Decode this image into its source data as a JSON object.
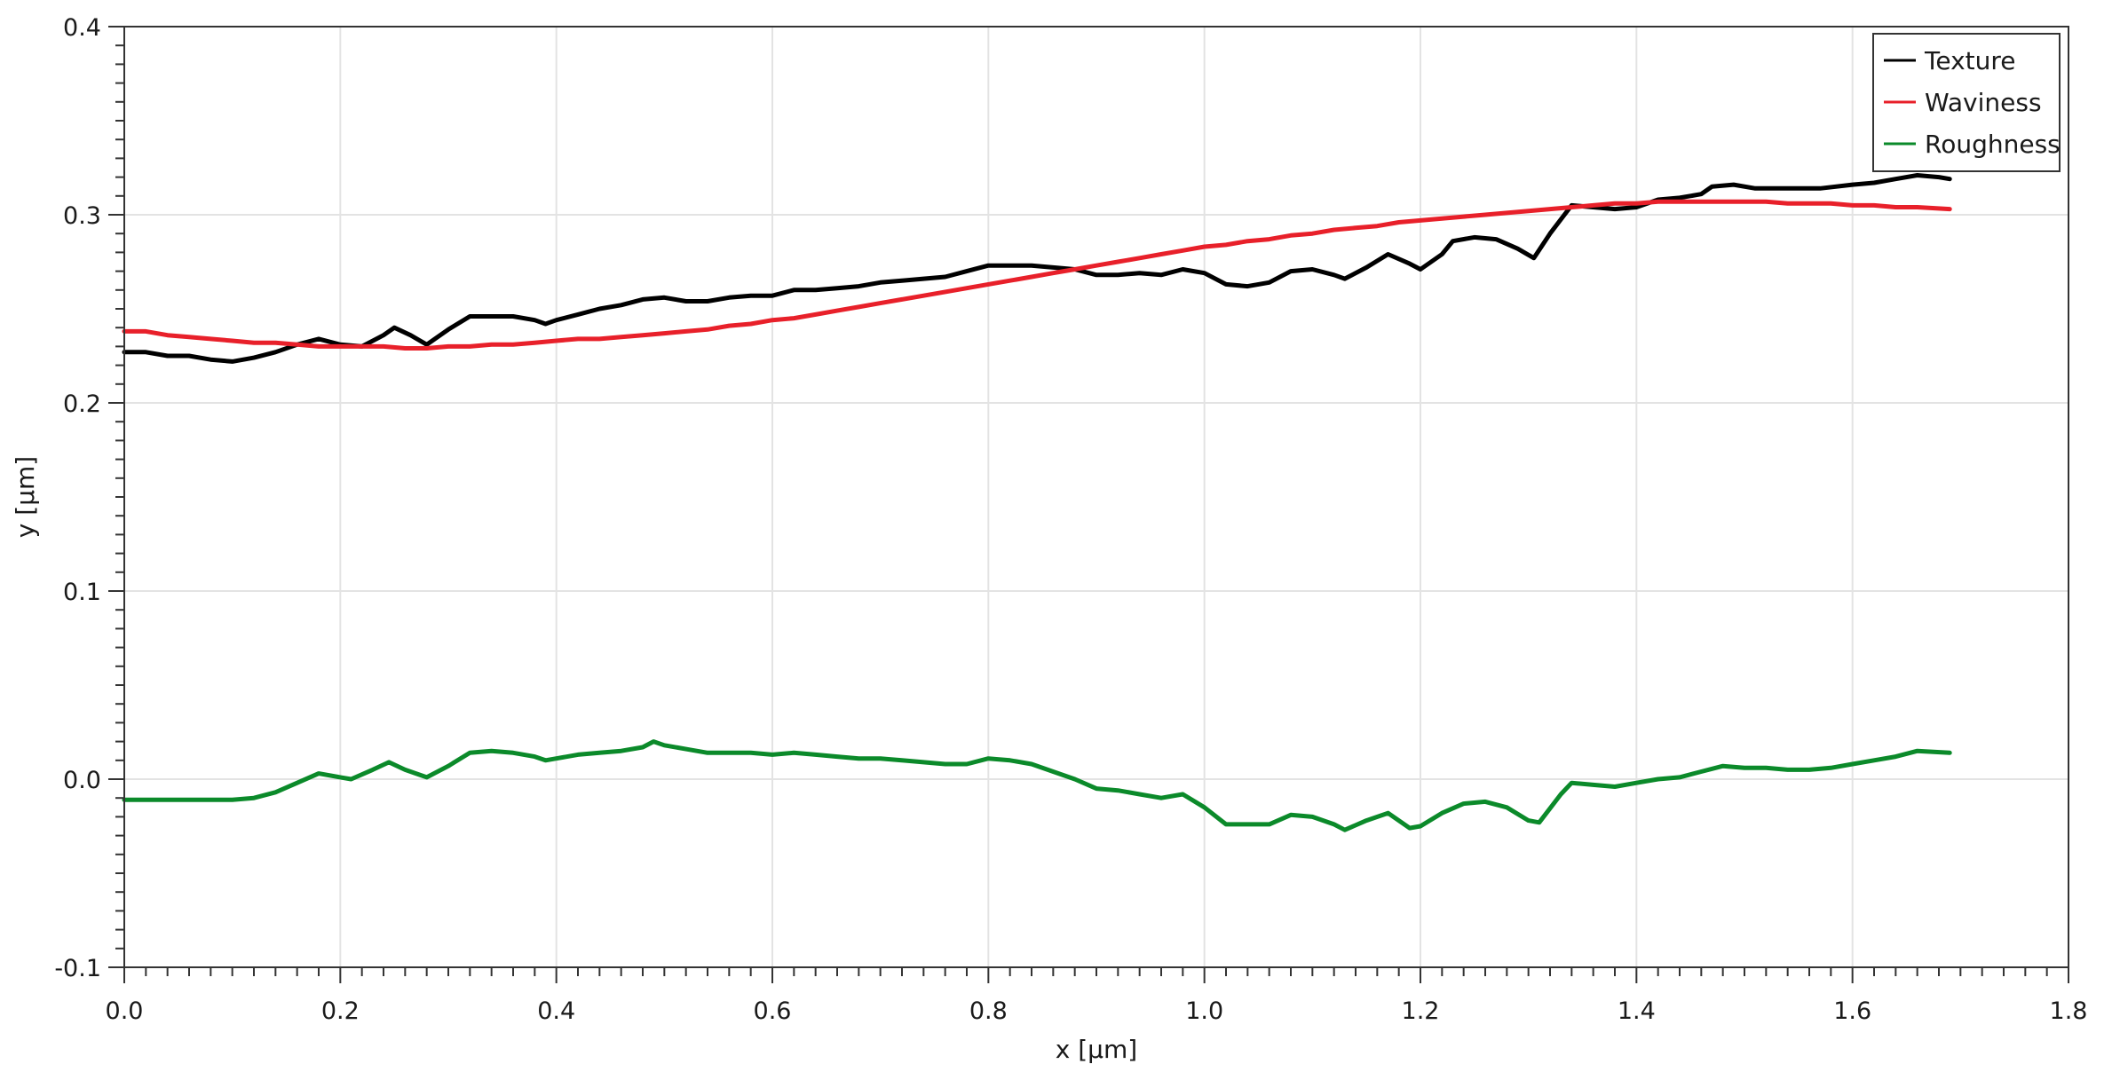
{
  "chart_data": {
    "type": "line",
    "title": "",
    "xlabel": "x [µm]",
    "ylabel": "y [µm]",
    "xlim": [
      0,
      1.8
    ],
    "ylim": [
      -0.1,
      0.4
    ],
    "x_ticks": [
      "0.0",
      "0.2",
      "0.4",
      "0.6",
      "0.8",
      "1.0",
      "1.2",
      "1.4",
      "1.6",
      "1.8"
    ],
    "y_ticks": [
      "0.4",
      "0.3",
      "0.2",
      "0.1",
      "0.0",
      "-0.1"
    ],
    "grid": true,
    "legend_position": "top-right",
    "series": [
      {
        "name": "Texture",
        "color": "#000000",
        "points": [
          [
            0.0,
            0.227
          ],
          [
            0.02,
            0.227
          ],
          [
            0.04,
            0.225
          ],
          [
            0.06,
            0.225
          ],
          [
            0.08,
            0.223
          ],
          [
            0.1,
            0.222
          ],
          [
            0.12,
            0.224
          ],
          [
            0.14,
            0.227
          ],
          [
            0.16,
            0.231
          ],
          [
            0.18,
            0.234
          ],
          [
            0.2,
            0.231
          ],
          [
            0.22,
            0.23
          ],
          [
            0.24,
            0.236
          ],
          [
            0.25,
            0.24
          ],
          [
            0.265,
            0.236
          ],
          [
            0.28,
            0.231
          ],
          [
            0.3,
            0.239
          ],
          [
            0.32,
            0.246
          ],
          [
            0.34,
            0.246
          ],
          [
            0.36,
            0.246
          ],
          [
            0.38,
            0.244
          ],
          [
            0.39,
            0.242
          ],
          [
            0.4,
            0.244
          ],
          [
            0.42,
            0.247
          ],
          [
            0.44,
            0.25
          ],
          [
            0.46,
            0.252
          ],
          [
            0.48,
            0.255
          ],
          [
            0.5,
            0.256
          ],
          [
            0.52,
            0.254
          ],
          [
            0.54,
            0.254
          ],
          [
            0.56,
            0.256
          ],
          [
            0.58,
            0.257
          ],
          [
            0.6,
            0.257
          ],
          [
            0.62,
            0.26
          ],
          [
            0.64,
            0.26
          ],
          [
            0.66,
            0.261
          ],
          [
            0.68,
            0.262
          ],
          [
            0.7,
            0.264
          ],
          [
            0.72,
            0.265
          ],
          [
            0.74,
            0.266
          ],
          [
            0.76,
            0.267
          ],
          [
            0.78,
            0.27
          ],
          [
            0.8,
            0.273
          ],
          [
            0.82,
            0.273
          ],
          [
            0.84,
            0.273
          ],
          [
            0.86,
            0.272
          ],
          [
            0.88,
            0.271
          ],
          [
            0.9,
            0.268
          ],
          [
            0.92,
            0.268
          ],
          [
            0.94,
            0.269
          ],
          [
            0.96,
            0.268
          ],
          [
            0.98,
            0.271
          ],
          [
            1.0,
            0.269
          ],
          [
            1.02,
            0.263
          ],
          [
            1.04,
            0.262
          ],
          [
            1.06,
            0.264
          ],
          [
            1.08,
            0.27
          ],
          [
            1.1,
            0.271
          ],
          [
            1.12,
            0.268
          ],
          [
            1.13,
            0.266
          ],
          [
            1.15,
            0.272
          ],
          [
            1.17,
            0.279
          ],
          [
            1.19,
            0.274
          ],
          [
            1.2,
            0.271
          ],
          [
            1.22,
            0.279
          ],
          [
            1.23,
            0.286
          ],
          [
            1.25,
            0.288
          ],
          [
            1.27,
            0.287
          ],
          [
            1.29,
            0.282
          ],
          [
            1.305,
            0.277
          ],
          [
            1.32,
            0.29
          ],
          [
            1.34,
            0.305
          ],
          [
            1.36,
            0.304
          ],
          [
            1.38,
            0.303
          ],
          [
            1.4,
            0.304
          ],
          [
            1.42,
            0.308
          ],
          [
            1.44,
            0.309
          ],
          [
            1.46,
            0.311
          ],
          [
            1.47,
            0.315
          ],
          [
            1.49,
            0.316
          ],
          [
            1.51,
            0.314
          ],
          [
            1.54,
            0.314
          ],
          [
            1.57,
            0.314
          ],
          [
            1.6,
            0.316
          ],
          [
            1.62,
            0.317
          ],
          [
            1.64,
            0.319
          ],
          [
            1.66,
            0.321
          ],
          [
            1.68,
            0.32
          ],
          [
            1.69,
            0.319
          ]
        ]
      },
      {
        "name": "Waviness",
        "color": "#e8202a",
        "points": [
          [
            0.0,
            0.238
          ],
          [
            0.02,
            0.238
          ],
          [
            0.04,
            0.236
          ],
          [
            0.06,
            0.235
          ],
          [
            0.08,
            0.234
          ],
          [
            0.1,
            0.233
          ],
          [
            0.12,
            0.232
          ],
          [
            0.14,
            0.232
          ],
          [
            0.16,
            0.231
          ],
          [
            0.18,
            0.23
          ],
          [
            0.2,
            0.23
          ],
          [
            0.22,
            0.23
          ],
          [
            0.24,
            0.23
          ],
          [
            0.26,
            0.229
          ],
          [
            0.28,
            0.229
          ],
          [
            0.3,
            0.23
          ],
          [
            0.32,
            0.23
          ],
          [
            0.34,
            0.231
          ],
          [
            0.36,
            0.231
          ],
          [
            0.38,
            0.232
          ],
          [
            0.4,
            0.233
          ],
          [
            0.42,
            0.234
          ],
          [
            0.44,
            0.234
          ],
          [
            0.46,
            0.235
          ],
          [
            0.48,
            0.236
          ],
          [
            0.5,
            0.237
          ],
          [
            0.52,
            0.238
          ],
          [
            0.54,
            0.239
          ],
          [
            0.56,
            0.241
          ],
          [
            0.58,
            0.242
          ],
          [
            0.6,
            0.244
          ],
          [
            0.62,
            0.245
          ],
          [
            0.64,
            0.247
          ],
          [
            0.66,
            0.249
          ],
          [
            0.68,
            0.251
          ],
          [
            0.7,
            0.253
          ],
          [
            0.72,
            0.255
          ],
          [
            0.74,
            0.257
          ],
          [
            0.76,
            0.259
          ],
          [
            0.78,
            0.261
          ],
          [
            0.8,
            0.263
          ],
          [
            0.82,
            0.265
          ],
          [
            0.84,
            0.267
          ],
          [
            0.86,
            0.269
          ],
          [
            0.88,
            0.271
          ],
          [
            0.9,
            0.273
          ],
          [
            0.92,
            0.275
          ],
          [
            0.94,
            0.277
          ],
          [
            0.96,
            0.279
          ],
          [
            0.98,
            0.281
          ],
          [
            1.0,
            0.283
          ],
          [
            1.02,
            0.284
          ],
          [
            1.04,
            0.286
          ],
          [
            1.06,
            0.287
          ],
          [
            1.08,
            0.289
          ],
          [
            1.1,
            0.29
          ],
          [
            1.12,
            0.292
          ],
          [
            1.14,
            0.293
          ],
          [
            1.16,
            0.294
          ],
          [
            1.18,
            0.296
          ],
          [
            1.2,
            0.297
          ],
          [
            1.22,
            0.298
          ],
          [
            1.24,
            0.299
          ],
          [
            1.26,
            0.3
          ],
          [
            1.28,
            0.301
          ],
          [
            1.3,
            0.302
          ],
          [
            1.32,
            0.303
          ],
          [
            1.34,
            0.304
          ],
          [
            1.36,
            0.305
          ],
          [
            1.38,
            0.306
          ],
          [
            1.4,
            0.306
          ],
          [
            1.42,
            0.307
          ],
          [
            1.44,
            0.307
          ],
          [
            1.46,
            0.307
          ],
          [
            1.48,
            0.307
          ],
          [
            1.5,
            0.307
          ],
          [
            1.52,
            0.307
          ],
          [
            1.54,
            0.306
          ],
          [
            1.56,
            0.306
          ],
          [
            1.58,
            0.306
          ],
          [
            1.6,
            0.305
          ],
          [
            1.62,
            0.305
          ],
          [
            1.64,
            0.304
          ],
          [
            1.66,
            0.304
          ],
          [
            1.69,
            0.303
          ]
        ]
      },
      {
        "name": "Roughness",
        "color": "#0b8a2a",
        "points": [
          [
            0.0,
            -0.011
          ],
          [
            0.02,
            -0.011
          ],
          [
            0.04,
            -0.011
          ],
          [
            0.06,
            -0.011
          ],
          [
            0.08,
            -0.011
          ],
          [
            0.1,
            -0.011
          ],
          [
            0.12,
            -0.01
          ],
          [
            0.14,
            -0.007
          ],
          [
            0.16,
            -0.002
          ],
          [
            0.18,
            0.003
          ],
          [
            0.2,
            0.001
          ],
          [
            0.21,
            0.0
          ],
          [
            0.23,
            0.005
          ],
          [
            0.245,
            0.009
          ],
          [
            0.26,
            0.005
          ],
          [
            0.28,
            0.001
          ],
          [
            0.3,
            0.007
          ],
          [
            0.32,
            0.014
          ],
          [
            0.34,
            0.015
          ],
          [
            0.36,
            0.014
          ],
          [
            0.38,
            0.012
          ],
          [
            0.39,
            0.01
          ],
          [
            0.4,
            0.011
          ],
          [
            0.42,
            0.013
          ],
          [
            0.44,
            0.014
          ],
          [
            0.46,
            0.015
          ],
          [
            0.48,
            0.017
          ],
          [
            0.49,
            0.02
          ],
          [
            0.5,
            0.018
          ],
          [
            0.52,
            0.016
          ],
          [
            0.54,
            0.014
          ],
          [
            0.56,
            0.014
          ],
          [
            0.58,
            0.014
          ],
          [
            0.6,
            0.013
          ],
          [
            0.62,
            0.014
          ],
          [
            0.64,
            0.013
          ],
          [
            0.66,
            0.012
          ],
          [
            0.68,
            0.011
          ],
          [
            0.7,
            0.011
          ],
          [
            0.72,
            0.01
          ],
          [
            0.74,
            0.009
          ],
          [
            0.76,
            0.008
          ],
          [
            0.78,
            0.008
          ],
          [
            0.8,
            0.011
          ],
          [
            0.82,
            0.01
          ],
          [
            0.84,
            0.008
          ],
          [
            0.86,
            0.004
          ],
          [
            0.88,
            0.0
          ],
          [
            0.9,
            -0.005
          ],
          [
            0.92,
            -0.006
          ],
          [
            0.94,
            -0.008
          ],
          [
            0.96,
            -0.01
          ],
          [
            0.98,
            -0.008
          ],
          [
            1.0,
            -0.015
          ],
          [
            1.02,
            -0.024
          ],
          [
            1.04,
            -0.024
          ],
          [
            1.06,
            -0.024
          ],
          [
            1.08,
            -0.019
          ],
          [
            1.1,
            -0.02
          ],
          [
            1.12,
            -0.024
          ],
          [
            1.13,
            -0.027
          ],
          [
            1.15,
            -0.022
          ],
          [
            1.17,
            -0.018
          ],
          [
            1.19,
            -0.026
          ],
          [
            1.2,
            -0.025
          ],
          [
            1.22,
            -0.018
          ],
          [
            1.24,
            -0.013
          ],
          [
            1.26,
            -0.012
          ],
          [
            1.28,
            -0.015
          ],
          [
            1.3,
            -0.022
          ],
          [
            1.31,
            -0.023
          ],
          [
            1.33,
            -0.008
          ],
          [
            1.34,
            -0.002
          ],
          [
            1.36,
            -0.003
          ],
          [
            1.38,
            -0.004
          ],
          [
            1.4,
            -0.002
          ],
          [
            1.42,
            0.0
          ],
          [
            1.44,
            0.001
          ],
          [
            1.46,
            0.004
          ],
          [
            1.48,
            0.007
          ],
          [
            1.5,
            0.006
          ],
          [
            1.52,
            0.006
          ],
          [
            1.54,
            0.005
          ],
          [
            1.56,
            0.005
          ],
          [
            1.58,
            0.006
          ],
          [
            1.6,
            0.008
          ],
          [
            1.62,
            0.01
          ],
          [
            1.64,
            0.012
          ],
          [
            1.66,
            0.015
          ],
          [
            1.69,
            0.014
          ]
        ]
      }
    ]
  }
}
